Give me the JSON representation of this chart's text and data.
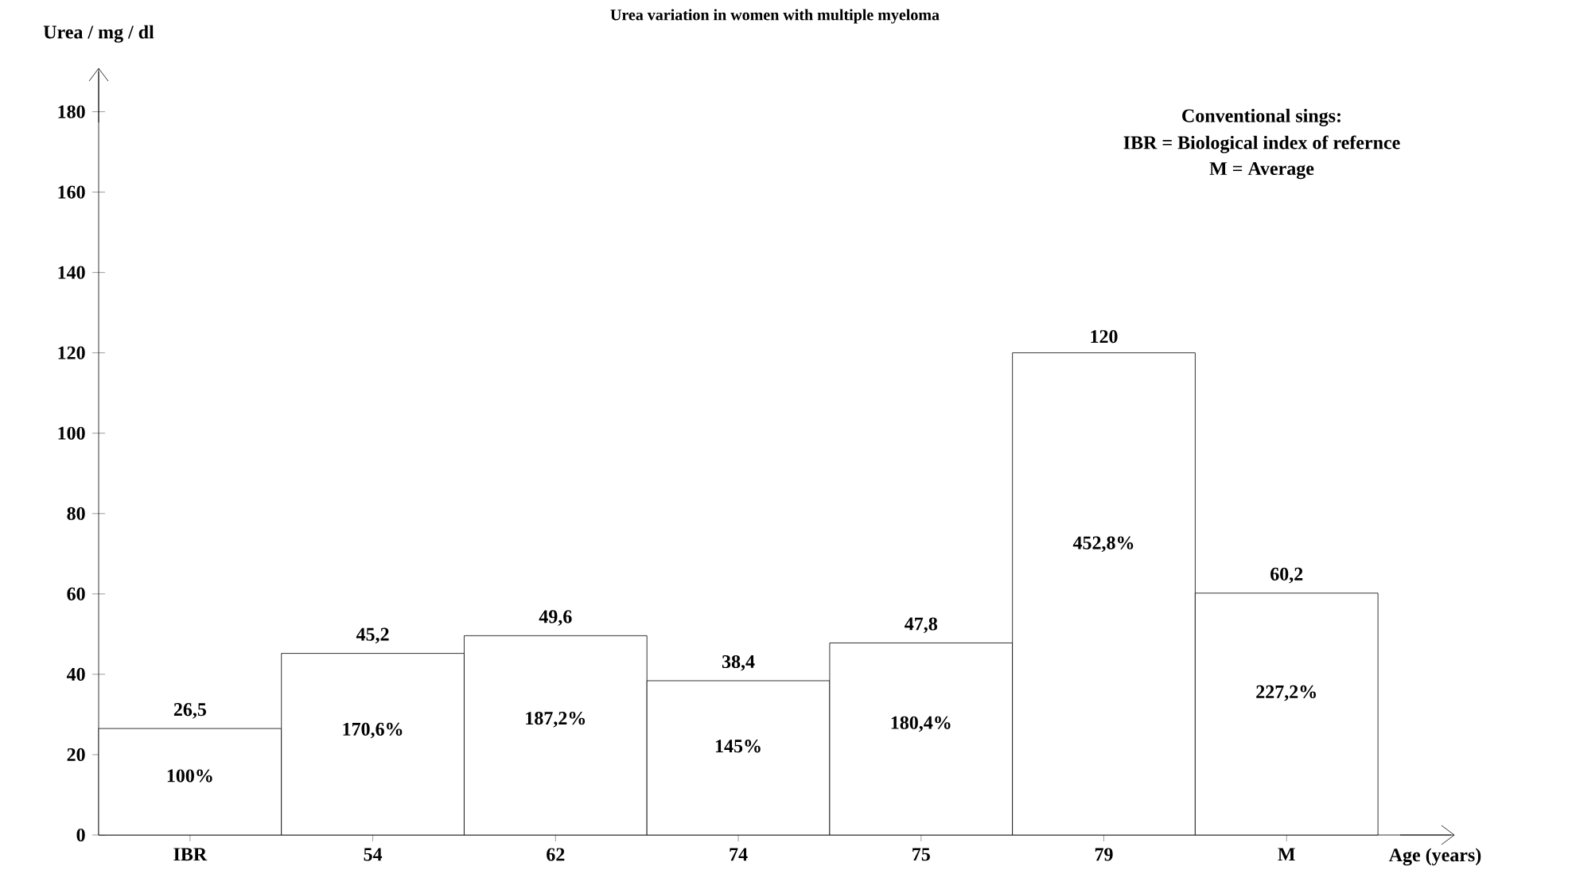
{
  "chart_data": {
    "type": "bar",
    "title": "Urea variation in women with multiple myeloma",
    "xlabel": "Age (years)",
    "ylabel": "Urea / mg / dl",
    "categories": [
      "IBR",
      "54",
      "62",
      "74",
      "75",
      "79",
      "M"
    ],
    "values": [
      26.5,
      45.2,
      49.6,
      38.4,
      47.8,
      120,
      60.2
    ],
    "value_labels": [
      "26,5",
      "45,2",
      "49,6",
      "38,4",
      "47,8",
      "120",
      "60,2"
    ],
    "color": "#ffffff",
    "ylim": [
      0,
      190
    ],
    "yticks": [
      0,
      20,
      40,
      60,
      80,
      100,
      120,
      140,
      160,
      180
    ],
    "annotations": [
      "100%",
      "170,6%",
      "187,2%",
      "145%",
      "180,4%",
      "452,8%",
      "227,2%",
      "Conventional sings:",
      "IBR = Biological index of refernce",
      "M = Average"
    ]
  }
}
